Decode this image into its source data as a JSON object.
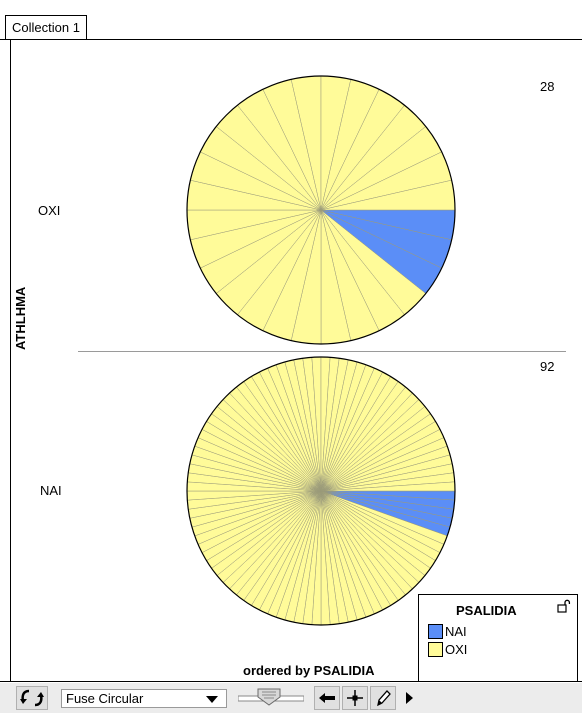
{
  "tab_label": "Collection 1",
  "y_attribute": "ATHLHMA",
  "x_caption": "ordered by PSALIDIA",
  "colors": {
    "NAI": "#5b8ef7",
    "OXI": "#fffb99"
  },
  "chart_data": [
    {
      "type": "pie",
      "row_label": "OXI",
      "count": "28",
      "slices": [
        {
          "name": "NAI",
          "value": 3
        },
        {
          "name": "OXI",
          "value": 25
        }
      ]
    },
    {
      "type": "pie",
      "row_label": "NAI",
      "count": "92",
      "slices": [
        {
          "name": "NAI",
          "value": 5
        },
        {
          "name": "OXI",
          "value": 87
        }
      ]
    }
  ],
  "legend": {
    "title": "PSALIDIA",
    "items": [
      "NAI",
      "OXI"
    ]
  },
  "toolbar": {
    "layout_select": "Fuse Circular"
  }
}
